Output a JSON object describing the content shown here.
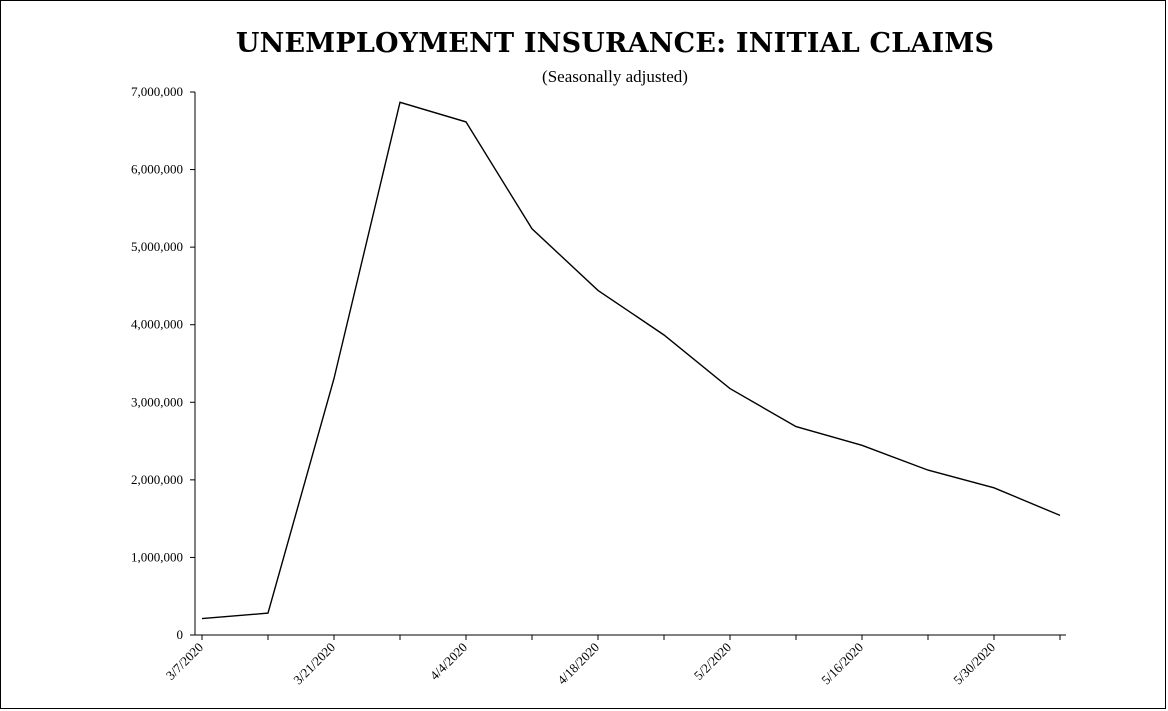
{
  "chart_data": {
    "type": "line",
    "title": "UNEMPLOYMENT INSURANCE: INITIAL CLAIMS",
    "subtitle": "(Seasonally adjusted)",
    "xlabel": "",
    "ylabel": "",
    "ylim": [
      0,
      7000000
    ],
    "yticks": [
      0,
      1000000,
      2000000,
      3000000,
      4000000,
      5000000,
      6000000,
      7000000
    ],
    "ytick_labels": [
      "0",
      "1,000,000",
      "2,000,000",
      "3,000,000",
      "4,000,000",
      "5,000,000",
      "6,000,000",
      "7,000,000"
    ],
    "x": [
      "3/7/2020",
      "3/14/2020",
      "3/21/2020",
      "3/28/2020",
      "4/4/2020",
      "4/11/2020",
      "4/18/2020",
      "4/25/2020",
      "5/2/2020",
      "5/9/2020",
      "5/16/2020",
      "5/23/2020",
      "5/30/2020",
      "6/6/2020"
    ],
    "xtick_labels": [
      "3/7/2020",
      "3/21/2020",
      "4/4/2020",
      "4/18/2020",
      "5/2/2020",
      "5/16/2020",
      "5/30/2020"
    ],
    "series": [
      {
        "values": [
          211000,
          282000,
          3307000,
          6867000,
          6615000,
          5237000,
          4442000,
          3867000,
          3176000,
          2687000,
          2446000,
          2126000,
          1897000,
          1542000
        ]
      }
    ],
    "grid": false,
    "legend": "none",
    "line_color": "#000000"
  }
}
